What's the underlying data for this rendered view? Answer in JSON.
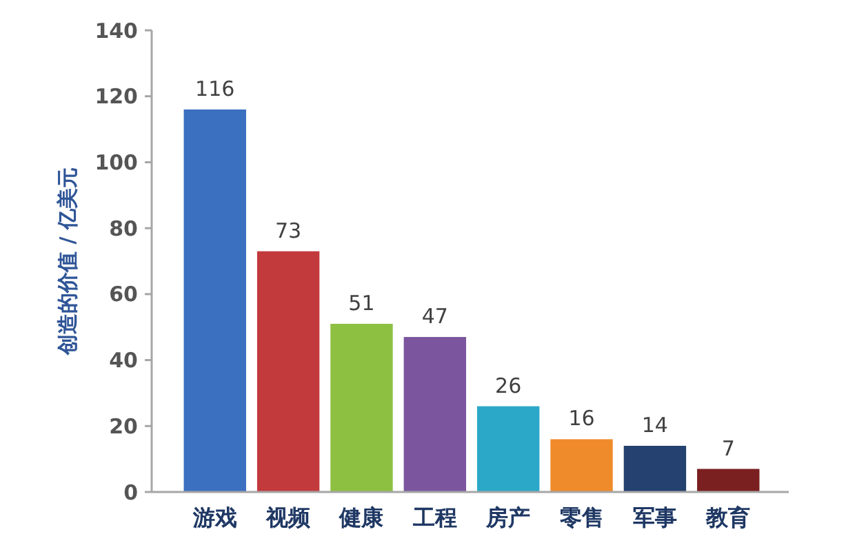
{
  "chart_data": {
    "type": "bar",
    "ylabel": "创造的价值 / 亿美元",
    "categories": [
      "游戏",
      "视频",
      "健康",
      "工程",
      "房产",
      "零售",
      "军事",
      "教育"
    ],
    "values": [
      116,
      73,
      51,
      47,
      26,
      16,
      14,
      7
    ],
    "colors": [
      "#3b6fc0",
      "#c23a3c",
      "#8dc041",
      "#7b569f",
      "#2ba8c8",
      "#f08b2b",
      "#24416f",
      "#7b2020"
    ],
    "ylim": [
      0,
      140
    ],
    "yticks": [
      0,
      20,
      40,
      60,
      80,
      100,
      120,
      140
    ],
    "grid": false,
    "data_labels": true
  }
}
